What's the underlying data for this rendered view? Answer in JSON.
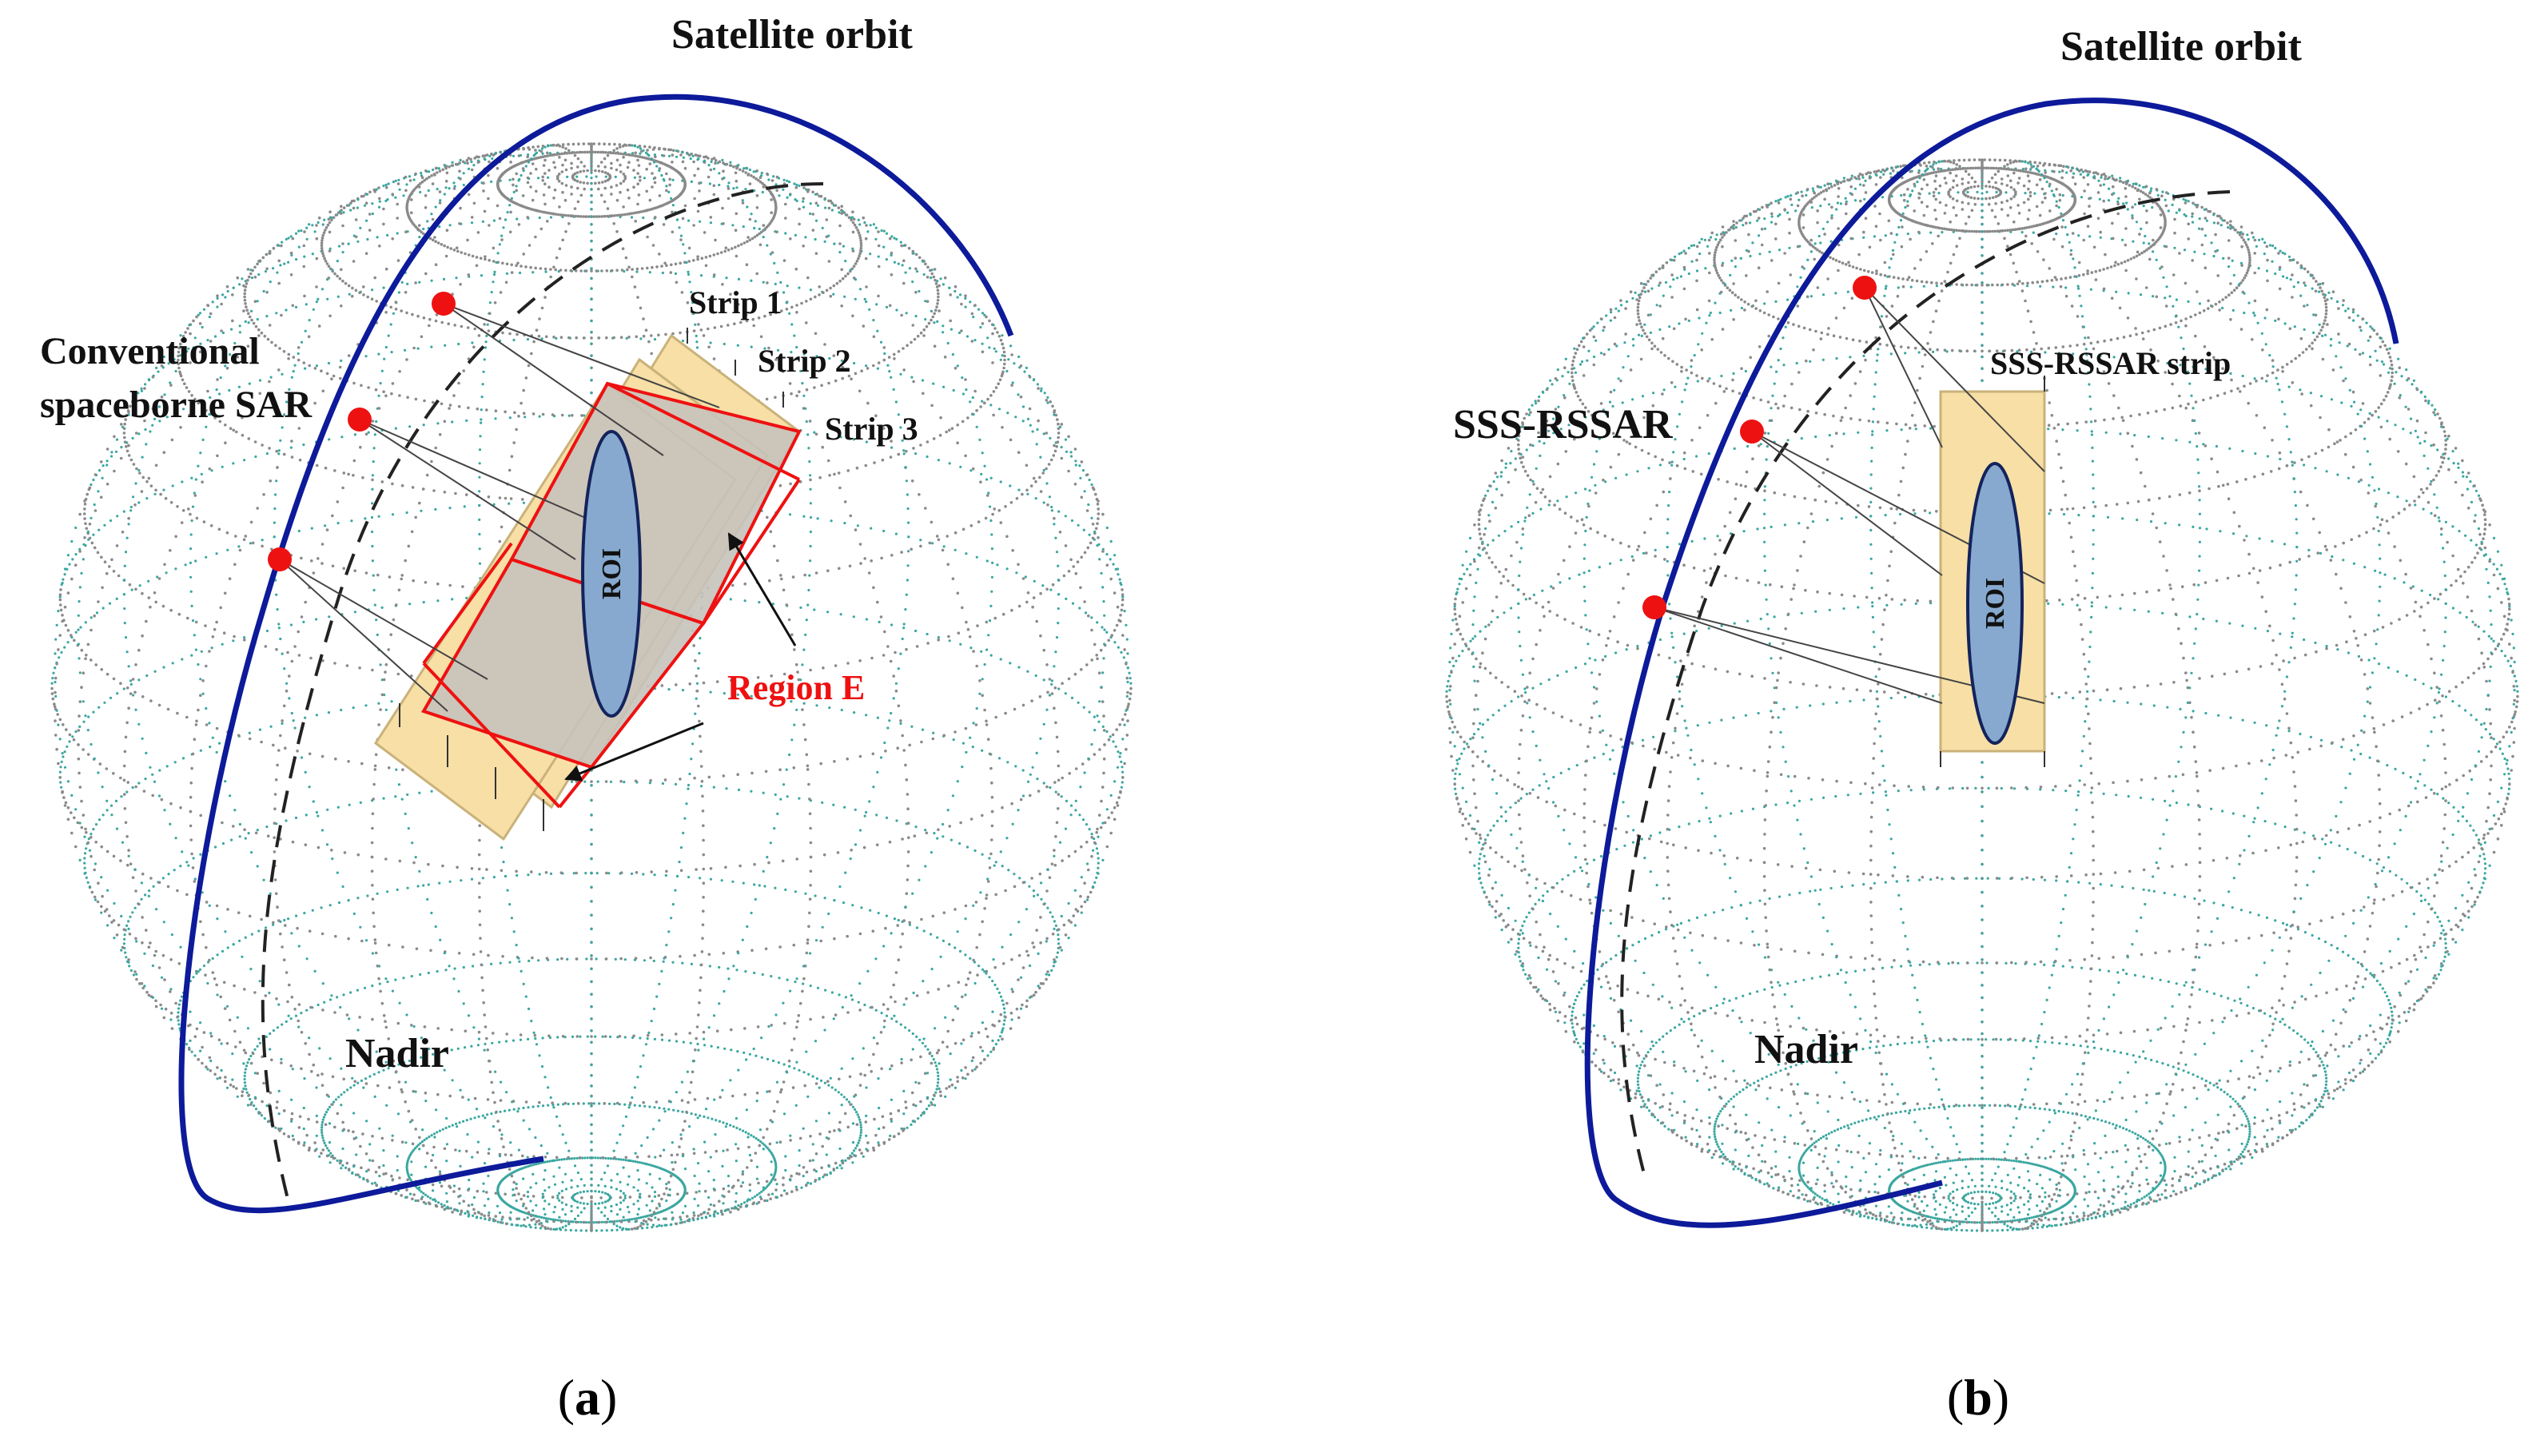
{
  "colors": {
    "orbit": "#0d1a9a",
    "satellite": "#ee1111",
    "strip_fill": "#f7dfa6",
    "strip_border": "#c9b27a",
    "overlap_fill": "#c6c2bb",
    "region_border": "#ee1111",
    "roi_fill": "#87a9cf",
    "roi_border": "#13235c",
    "globe_back": "#3aa7a0",
    "globe_front": "#8a8a8a",
    "nadir_track": "#222222",
    "region_label": "#ee1111"
  },
  "icons": {
    "satellite": "red-dot-marker",
    "roi": "ellipse"
  },
  "panel_a": {
    "label_open": "(",
    "label_letter": "a",
    "label_close": ")",
    "satellite_orbit": "Satellite orbit",
    "sensor_line1": "Conventional",
    "sensor_line2": "spaceborne SAR",
    "strip1": "Strip 1",
    "strip2": "Strip 2",
    "strip3": "Strip 3",
    "roi": "ROI",
    "region": "Region E",
    "nadir": "Nadir"
  },
  "panel_b": {
    "label_open": "(",
    "label_letter": "b",
    "label_close": ")",
    "satellite_orbit": "Satellite orbit",
    "sensor": "SSS-RSSAR",
    "strip": "SSS-RSSAR  strip",
    "roi": "ROI",
    "nadir": "Nadir"
  }
}
